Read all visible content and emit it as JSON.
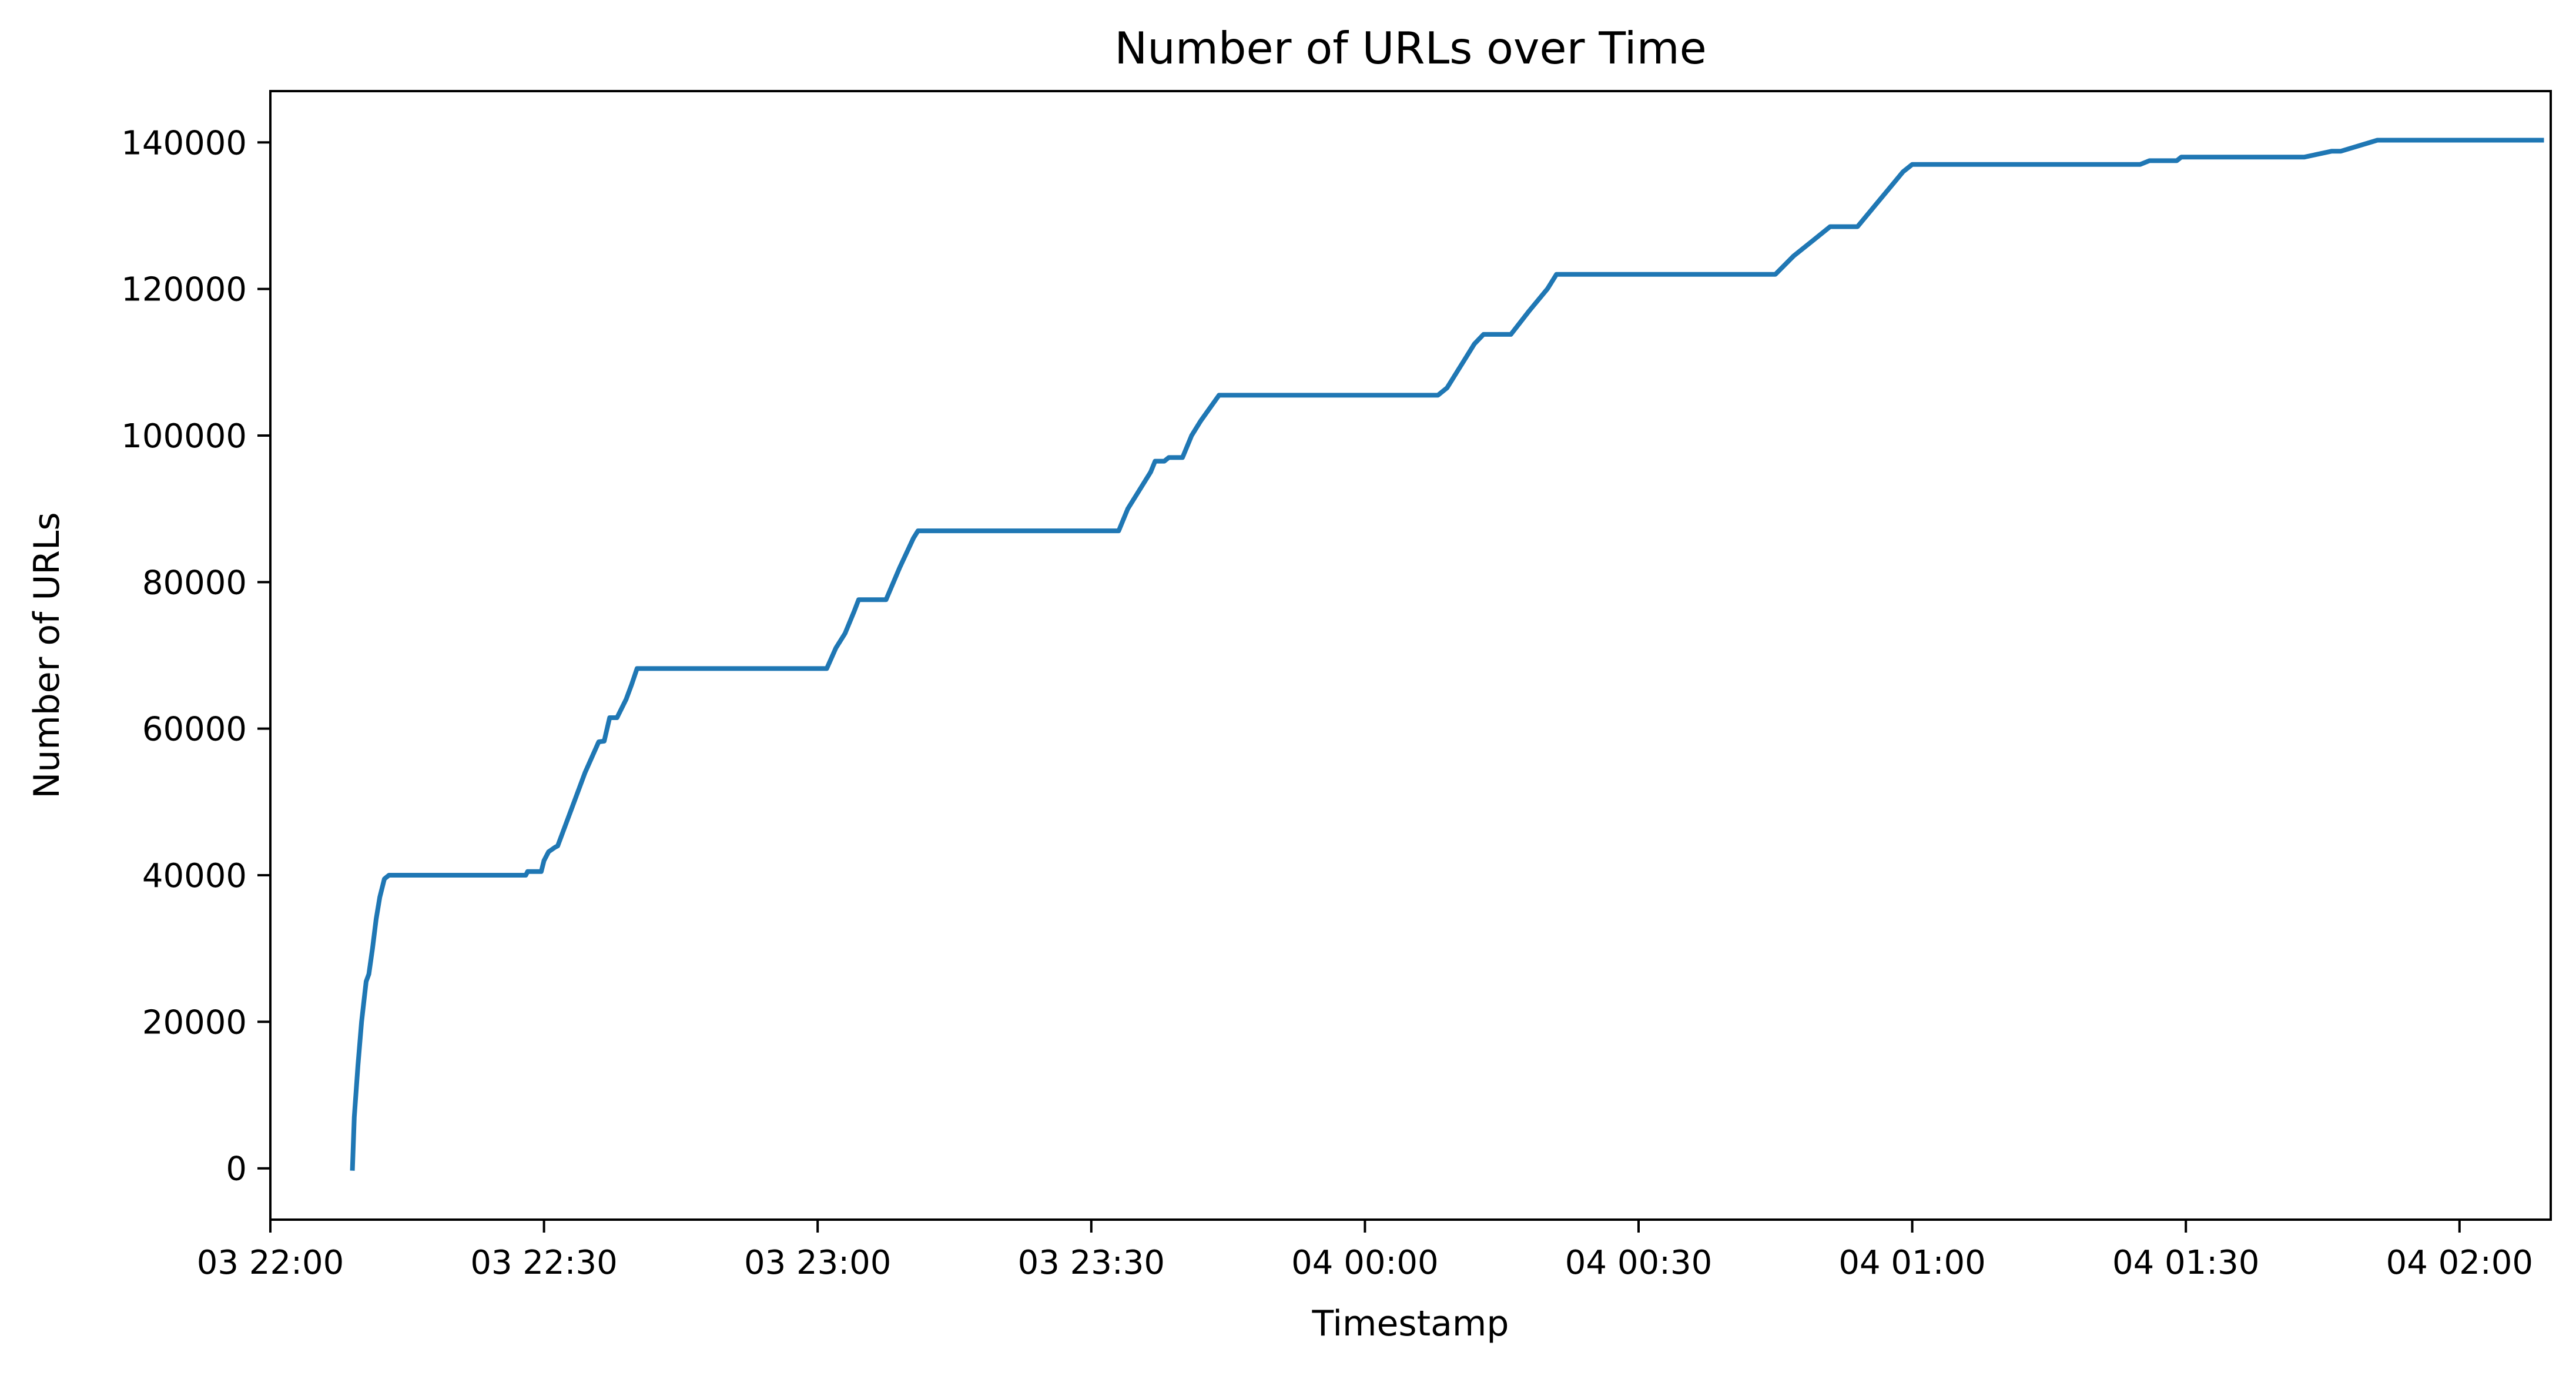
{
  "chart_data": {
    "type": "line",
    "title": "Number of URLs over Time",
    "xlabel": "Timestamp",
    "ylabel": "Number of URLs",
    "xlim": [
      "03 22:00",
      "04 02:10"
    ],
    "ylim": [
      -7000,
      147000
    ],
    "grid": false,
    "legend": "none",
    "colors": {
      "line": "#1f77b4",
      "axes": "#000000"
    },
    "x_ticks": [
      {
        "value": "03 22:00",
        "label": "03 22:00"
      },
      {
        "value": "03 22:30",
        "label": "03 22:30"
      },
      {
        "value": "03 23:00",
        "label": "03 23:00"
      },
      {
        "value": "03 23:30",
        "label": "03 23:30"
      },
      {
        "value": "04 00:00",
        "label": "04 00:00"
      },
      {
        "value": "04 00:30",
        "label": "04 00:30"
      },
      {
        "value": "04 01:00",
        "label": "04 01:00"
      },
      {
        "value": "04 01:30",
        "label": "04 01:30"
      },
      {
        "value": "04 02:00",
        "label": "04 02:00"
      }
    ],
    "y_ticks": [
      {
        "value": 0,
        "label": "0"
      },
      {
        "value": 20000,
        "label": "20000"
      },
      {
        "value": 40000,
        "label": "40000"
      },
      {
        "value": 60000,
        "label": "60000"
      },
      {
        "value": 80000,
        "label": "80000"
      },
      {
        "value": 100000,
        "label": "100000"
      },
      {
        "value": 120000,
        "label": "120000"
      },
      {
        "value": 140000,
        "label": "140000"
      }
    ],
    "series": [
      {
        "points": [
          [
            "03 22:09",
            0
          ],
          [
            "03 22:09:12",
            7000
          ],
          [
            "03 22:09:36",
            14000
          ],
          [
            "03 22:10",
            20000
          ],
          [
            "03 22:10:30",
            25500
          ],
          [
            "03 22:10:48",
            26500
          ],
          [
            "03 22:11:12",
            30000
          ],
          [
            "03 22:11:36",
            34000
          ],
          [
            "03 22:12",
            37000
          ],
          [
            "03 22:12:30",
            39500
          ],
          [
            "03 22:13",
            40000
          ],
          [
            "03 22:15",
            40000
          ],
          [
            "03 22:28",
            40000
          ],
          [
            "03 22:28:12",
            40500
          ],
          [
            "03 22:29:42",
            40500
          ],
          [
            "03 22:30",
            42000
          ],
          [
            "03 22:30:30",
            43200
          ],
          [
            "03 22:31:12",
            43800
          ],
          [
            "03 22:31:30",
            44000
          ],
          [
            "03 22:33",
            49000
          ],
          [
            "03 22:34:30",
            54000
          ],
          [
            "03 22:36",
            58200
          ],
          [
            "03 22:36:36",
            58300
          ],
          [
            "03 22:37:12",
            61500
          ],
          [
            "03 22:38",
            61500
          ],
          [
            "03 22:39",
            64000
          ],
          [
            "03 22:39:36",
            66000
          ],
          [
            "03 22:40:12",
            68200
          ],
          [
            "03 22:45",
            68200
          ],
          [
            "03 23:01",
            68200
          ],
          [
            "03 23:02",
            71000
          ],
          [
            "03 23:03",
            73000
          ],
          [
            "03 23:04",
            76000
          ],
          [
            "03 23:04:30",
            77600
          ],
          [
            "03 23:07:30",
            77600
          ],
          [
            "03 23:09",
            82000
          ],
          [
            "03 23:10:30",
            86000
          ],
          [
            "03 23:11",
            87000
          ],
          [
            "03 23:20",
            87000
          ],
          [
            "03 23:33",
            87000
          ],
          [
            "03 23:34",
            90000
          ],
          [
            "03 23:35",
            92000
          ],
          [
            "03 23:36:30",
            95000
          ],
          [
            "03 23:37",
            96500
          ],
          [
            "03 23:38",
            96500
          ],
          [
            "03 23:38:30",
            97000
          ],
          [
            "03 23:40",
            97000
          ],
          [
            "03 23:41",
            100000
          ],
          [
            "03 23:42",
            102000
          ],
          [
            "03 23:44",
            105500
          ],
          [
            "03 23:50",
            105500
          ],
          [
            "04 00:08",
            105500
          ],
          [
            "04 00:09",
            106500
          ],
          [
            "04 00:10",
            108500
          ],
          [
            "04 00:11",
            110500
          ],
          [
            "04 00:12",
            112500
          ],
          [
            "04 00:13",
            113800
          ],
          [
            "04 00:16",
            113800
          ],
          [
            "04 00:18",
            117000
          ],
          [
            "04 00:20",
            120000
          ],
          [
            "04 00:21",
            122000
          ],
          [
            "04 00:25",
            122000
          ],
          [
            "04 00:45",
            122000
          ],
          [
            "04 00:47",
            124500
          ],
          [
            "04 00:49",
            126500
          ],
          [
            "04 00:50",
            127500
          ],
          [
            "04 00:51",
            128500
          ],
          [
            "04 00:54",
            128500
          ],
          [
            "04 00:56",
            131500
          ],
          [
            "04 00:58",
            134500
          ],
          [
            "04 00:59",
            136000
          ],
          [
            "04 01:00",
            137000
          ],
          [
            "04 01:10",
            137000
          ],
          [
            "04 01:25",
            137000
          ],
          [
            "04 01:26",
            137500
          ],
          [
            "04 01:29",
            137500
          ],
          [
            "04 01:29:30",
            138000
          ],
          [
            "04 01:40",
            138000
          ],
          [
            "04 01:43",
            138000
          ],
          [
            "04 01:46",
            138800
          ],
          [
            "04 01:47",
            138800
          ],
          [
            "04 01:51",
            140300
          ],
          [
            "04 01:55",
            140300
          ],
          [
            "04 02:09",
            140300
          ]
        ]
      }
    ]
  }
}
